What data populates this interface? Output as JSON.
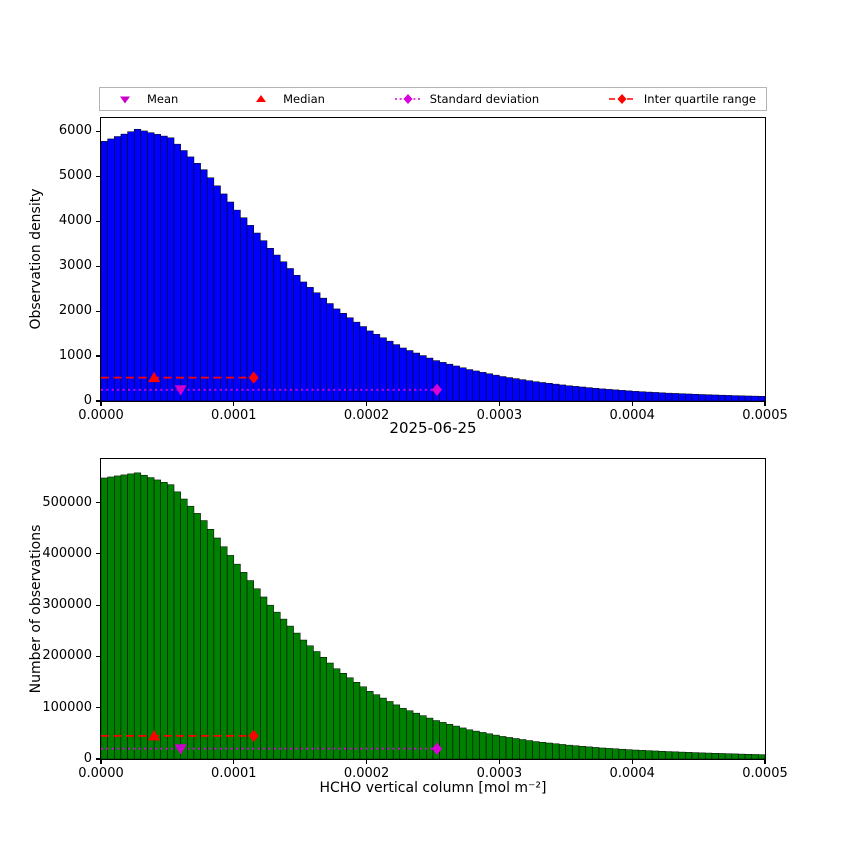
{
  "title": "2025-06-25",
  "xlabel": "HCHO vertical column [mol m⁻²]",
  "legend": {
    "items": [
      {
        "label": "Mean",
        "marker": "triangle-down",
        "color": "#cc00cc",
        "linestyle": "none"
      },
      {
        "label": "Median",
        "marker": "triangle-up",
        "color": "#ff0000",
        "linestyle": "none"
      },
      {
        "label": "Standard deviation",
        "marker": "diamond",
        "color": "#d900d9",
        "linestyle": "dotted"
      },
      {
        "label": "Inter quartile range",
        "marker": "diamond",
        "color": "#ff0000",
        "linestyle": "dashed"
      }
    ]
  },
  "chart_data": [
    {
      "type": "bar",
      "subtype": "histogram",
      "title": "",
      "ylabel": "Observation density",
      "xlabel": "",
      "bar_color": "#0000ff",
      "bar_edge_color": "#000000",
      "xlim": [
        0.0,
        0.0005
      ],
      "ylim": [
        0,
        6300
      ],
      "bin_width": 5e-06,
      "xtick_labels": [
        "0.0000",
        "0.0001",
        "0.0002",
        "0.0003",
        "0.0004",
        "0.0005"
      ],
      "yticks": [
        0,
        1000,
        2000,
        3000,
        4000,
        5000,
        6000
      ],
      "values": [
        5780,
        5834,
        5888,
        5942,
        5996,
        6050,
        6012,
        5974,
        5936,
        5898,
        5860,
        5718,
        5576,
        5434,
        5292,
        5150,
        4970,
        4790,
        4610,
        4430,
        4250,
        4080,
        3910,
        3740,
        3570,
        3400,
        3250,
        3100,
        2950,
        2800,
        2650,
        2530,
        2410,
        2290,
        2170,
        2050,
        1952,
        1854,
        1756,
        1658,
        1560,
        1484,
        1408,
        1332,
        1256,
        1180,
        1124,
        1068,
        1012,
        956,
        900,
        860,
        820,
        780,
        740,
        700,
        669,
        638,
        607,
        576,
        545,
        522,
        499,
        476,
        453,
        430,
        412,
        394,
        376,
        358,
        340,
        326,
        312,
        298,
        284,
        270,
        259,
        248,
        237,
        226,
        215,
        207,
        199,
        191,
        183,
        175,
        169,
        163,
        157,
        151,
        145,
        140,
        135,
        130,
        125,
        120,
        116,
        112,
        109,
        105
      ],
      "markers": {
        "mean": {
          "x": 6e-05,
          "y": 250
        },
        "median": {
          "x": 4e-05,
          "y": 520
        },
        "std": {
          "x_start": 0.0,
          "x_end": 0.000253,
          "y": 250
        },
        "iqr": {
          "x_start": 0.0,
          "x_end": 0.000115,
          "y": 520
        }
      }
    },
    {
      "type": "bar",
      "subtype": "histogram",
      "title": "2025-06-25",
      "ylabel": "Number of observations",
      "xlabel": "HCHO vertical column [mol m⁻²]",
      "bar_color": "#008000",
      "bar_edge_color": "#000000",
      "xlim": [
        0.0,
        0.0005
      ],
      "ylim": [
        0,
        585000
      ],
      "bin_width": 5e-06,
      "xtick_labels": [
        "0.0000",
        "0.0001",
        "0.0002",
        "0.0003",
        "0.0004",
        "0.0005"
      ],
      "yticks": [
        0,
        100000,
        200000,
        300000,
        400000,
        500000
      ],
      "values": [
        548000,
        550000,
        552000,
        554000,
        556000,
        558000,
        553400,
        548800,
        544200,
        539600,
        535000,
        521000,
        507000,
        493000,
        479000,
        465000,
        448000,
        431000,
        414000,
        397000,
        380000,
        364000,
        348000,
        332000,
        316000,
        300000,
        286400,
        272800,
        259200,
        245600,
        232000,
        220800,
        209600,
        198400,
        187200,
        176000,
        167200,
        158400,
        149600,
        140800,
        132000,
        125400,
        118800,
        112200,
        105600,
        99000,
        94200,
        89400,
        84600,
        79800,
        75000,
        71400,
        67800,
        64200,
        60600,
        57000,
        54400,
        51800,
        49200,
        46600,
        44000,
        42000,
        40000,
        38000,
        36000,
        34000,
        32600,
        31200,
        29800,
        28400,
        27000,
        25900,
        24800,
        23700,
        22600,
        21500,
        20700,
        19900,
        19100,
        18300,
        17500,
        16900,
        16300,
        15700,
        15100,
        14500,
        14000,
        13500,
        13000,
        12500,
        12000,
        11600,
        11200,
        10800,
        10400,
        10000,
        9600,
        9200,
        8900,
        8500
      ],
      "markers": {
        "mean": {
          "x": 6e-05,
          "y": 20000
        },
        "median": {
          "x": 4e-05,
          "y": 45000
        },
        "std": {
          "x_start": 0.0,
          "x_end": 0.000253,
          "y": 20000
        },
        "iqr": {
          "x_start": 0.0,
          "x_end": 0.000115,
          "y": 45000
        }
      }
    }
  ]
}
